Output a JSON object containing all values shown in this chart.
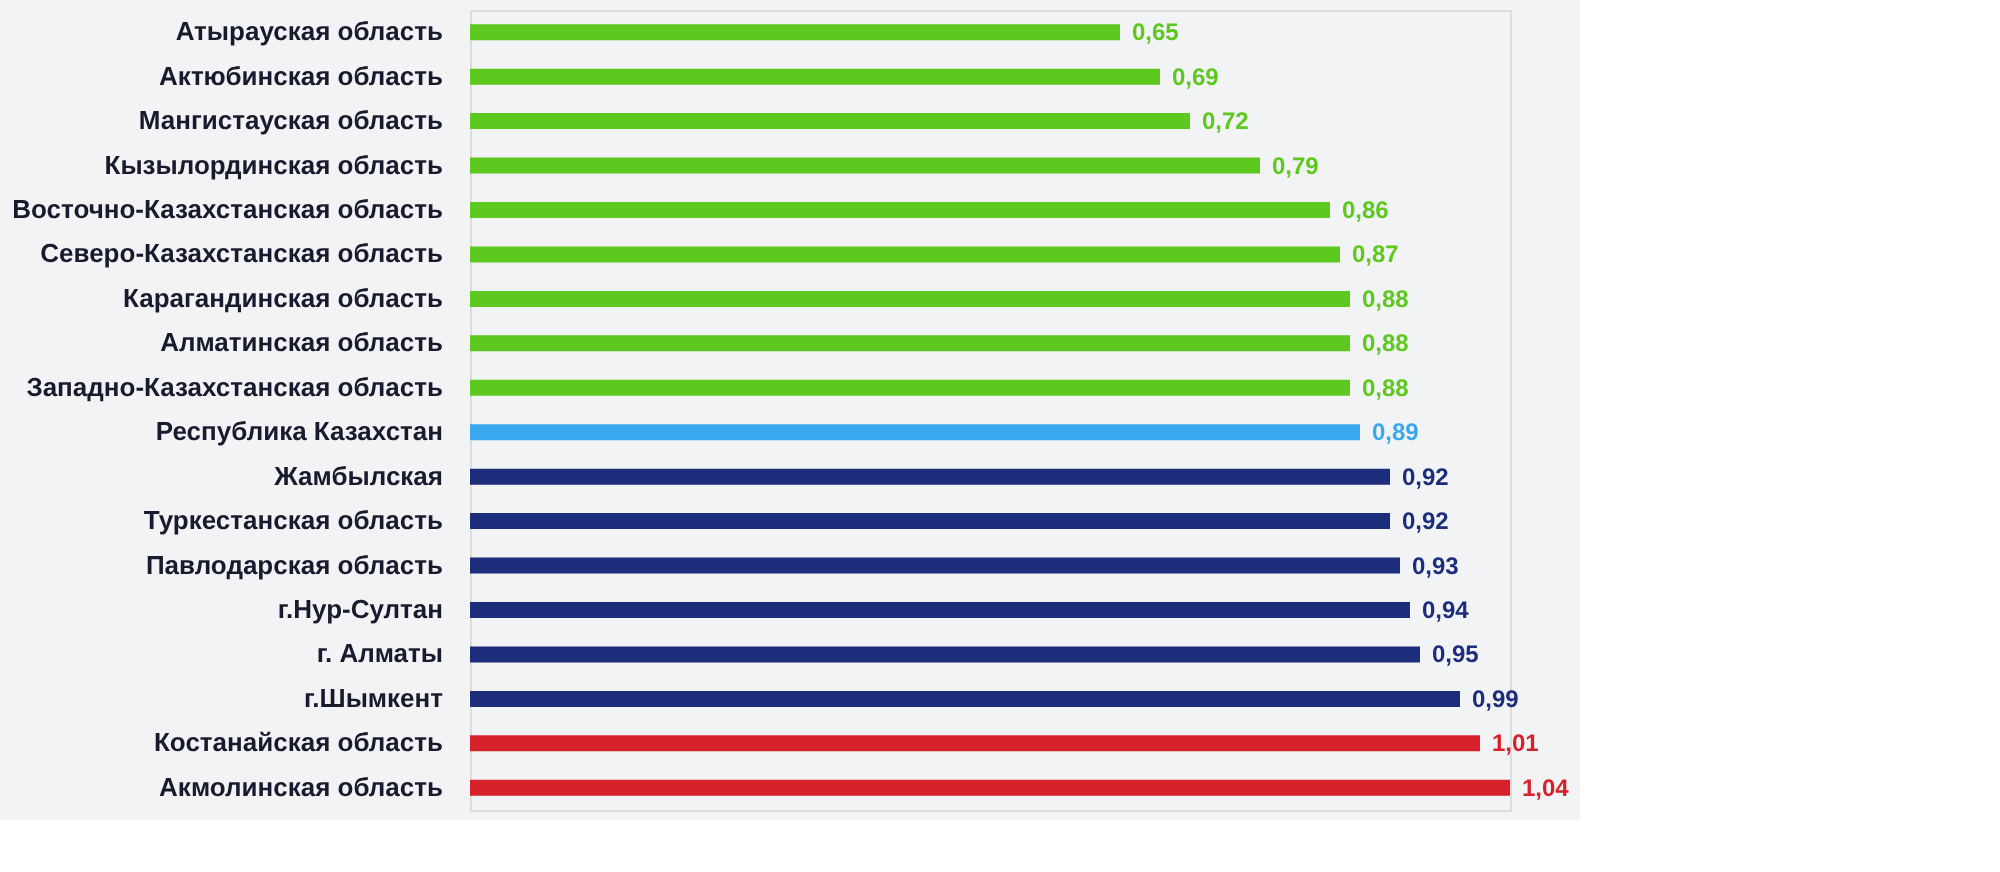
{
  "chart_data": {
    "type": "bar",
    "orientation": "horizontal",
    "categories": [
      "Атырауская область",
      "Актюбинская область",
      "Мангистауская область",
      "Кызылординская область",
      "Восточно-Казахстанская область",
      "Северо-Казахстанская область",
      "Карагандинская область",
      "Алматинская область",
      "Западно-Казахстанская область",
      "Республика Казахстан",
      "Жамбылская",
      "Туркестанская область",
      "Павлодарская область",
      "г.Нур-Султан",
      "г. Алматы",
      "г.Шымкент",
      "Костанайская область",
      "Акмолинская область"
    ],
    "values": [
      0.65,
      0.69,
      0.72,
      0.79,
      0.86,
      0.87,
      0.88,
      0.88,
      0.88,
      0.89,
      0.92,
      0.92,
      0.93,
      0.94,
      0.95,
      0.99,
      1.01,
      1.04
    ],
    "value_labels": [
      "0,65",
      "0,69",
      "0,72",
      "0,79",
      "0,86",
      "0,87",
      "0,88",
      "0,88",
      "0,88",
      "0,89",
      "0,92",
      "0,92",
      "0,93",
      "0,94",
      "0,95",
      "0,99",
      "1,01",
      "1,04"
    ],
    "colors": [
      "#5dc81e",
      "#5dc81e",
      "#5dc81e",
      "#5dc81e",
      "#5dc81e",
      "#5dc81e",
      "#5dc81e",
      "#5dc81e",
      "#5dc81e",
      "#3aa8ef",
      "#1c2d7c",
      "#1c2d7c",
      "#1c2d7c",
      "#1c2d7c",
      "#1c2d7c",
      "#1c2d7c",
      "#d6202b",
      "#d6202b"
    ],
    "grid": false
  }
}
